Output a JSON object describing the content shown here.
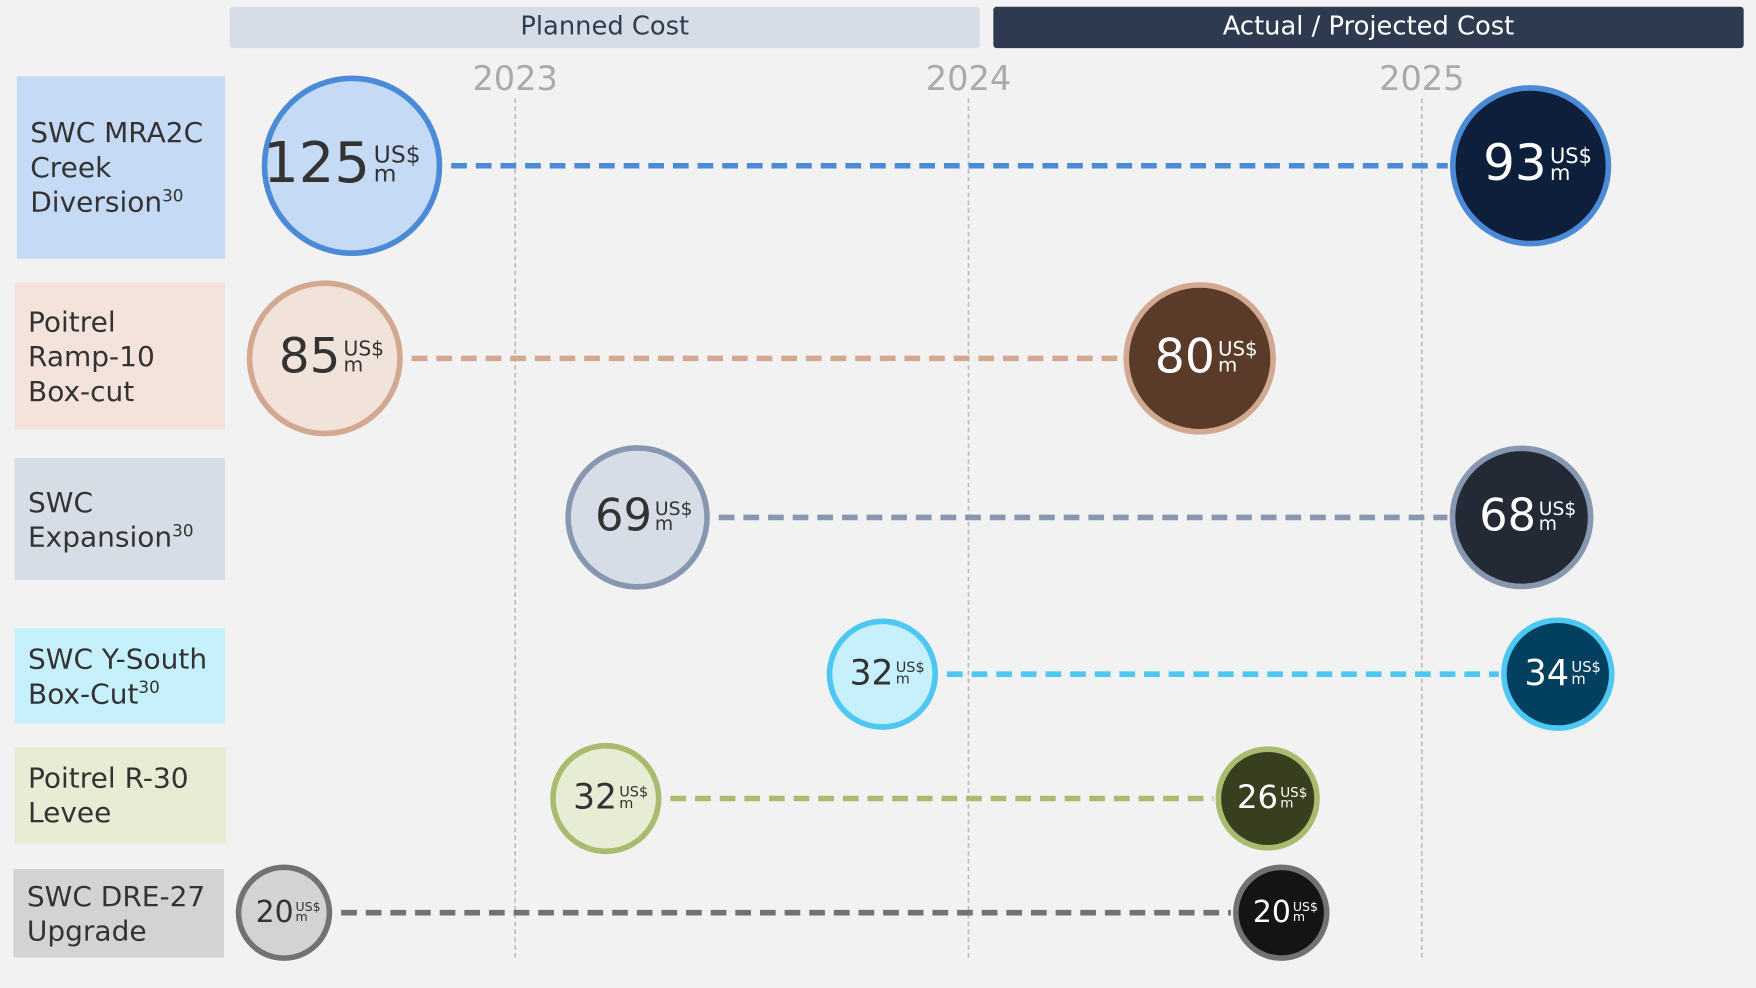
{
  "chart_data": {
    "type": "dumbbell",
    "headers": {
      "planned": "Planned Cost",
      "actual": "Actual  / Projected Cost"
    },
    "unit": "US$",
    "unit_sub": "m",
    "xlim": [
      2022.37,
      2025.71
    ],
    "xticks": [
      2023,
      2024,
      2025
    ],
    "grid": true,
    "rows": [
      {
        "label": "SWC MRA2C Creek Diversion",
        "note": "30",
        "label_color": "#c5daf5",
        "color": "#4a8ad6",
        "fill_planned": "#c5daf5",
        "fill_actual": "#0e1f3c",
        "planned": {
          "value": 125,
          "x": 2022.64
        },
        "actual": {
          "value": 93,
          "x": 2025.24
        }
      },
      {
        "label": "Poitrel Ramp-10 Box-cut",
        "label_color": "#f3e3da",
        "color": "#d2a891",
        "fill_planned": "#f2e3da",
        "fill_actual": "#5a3a28",
        "planned": {
          "value": 85,
          "x": 2022.58
        },
        "actual": {
          "value": 80,
          "x": 2024.51
        }
      },
      {
        "label": "SWC Expansion",
        "note": "30",
        "label_color": "#d7dde6",
        "color": "#8797b0",
        "fill_planned": "#d7dde6",
        "fill_actual": "#232a36",
        "planned": {
          "value": 69,
          "x": 2023.27
        },
        "actual": {
          "value": 68,
          "x": 2025.22
        }
      },
      {
        "label": "SWC Y-South Box-Cut",
        "note": "30",
        "label_color": "#c6f0fc",
        "color": "#4cc8f2",
        "fill_planned": "#c6f0fc",
        "fill_actual": "#033f5e",
        "planned": {
          "value": 32,
          "x": 2023.81
        },
        "actual": {
          "value": 34,
          "x": 2025.3
        }
      },
      {
        "label": "Poitrel R-30 Levee",
        "label_color": "#e7ecd4",
        "color": "#a9bb6e",
        "fill_planned": "#e7ecd4",
        "fill_actual": "#383f1f",
        "planned": {
          "value": 32,
          "x": 2023.2
        },
        "actual": {
          "value": 26,
          "x": 2024.66
        }
      },
      {
        "label": "SWC DRE-27 Upgrade",
        "label_color": "#d3d3d3",
        "color": "#727272",
        "fill_planned": "#d3d3d3",
        "fill_actual": "#141414",
        "planned": {
          "value": 20,
          "x": 2022.49
        },
        "actual": {
          "value": 20,
          "x": 2024.69
        }
      }
    ]
  }
}
